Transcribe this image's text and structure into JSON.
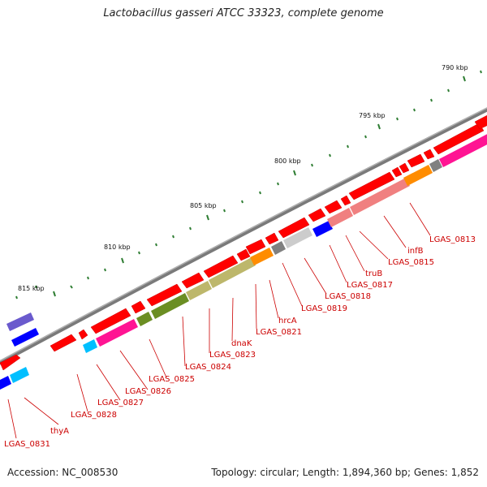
{
  "title": "Lactobacillus gasseri ATCC 33323, complete genome",
  "footer": {
    "accession": "Accession: NC_008530",
    "summary": "Topology: circular; Length: 1,894,360 bp; Genes: 1,852"
  },
  "axis": {
    "ticks": [
      "790 kbp",
      "795 kbp",
      "800 kbp",
      "805 kbp",
      "810 kbp",
      "815 kbp"
    ]
  },
  "genes": [
    {
      "name": "LGAS_0813",
      "color": "#ff1493"
    },
    {
      "name": "infB",
      "color": "#ff8c00"
    },
    {
      "name": "LGAS_0815",
      "color": "#f08080"
    },
    {
      "name": "truB",
      "color": "#f08080"
    },
    {
      "name": "LGAS_0817",
      "color": "#0000ff"
    },
    {
      "name": "LGAS_0818",
      "color": "#cccccc"
    },
    {
      "name": "LGAS_0819",
      "color": "#808080"
    },
    {
      "name": "hrcA",
      "color": "#ff8c00"
    },
    {
      "name": "LGAS_0821",
      "color": "#bdb76b"
    },
    {
      "name": "dnaK",
      "color": "#bdb76b"
    },
    {
      "name": "LGAS_0823",
      "color": "#bdb76b"
    },
    {
      "name": "LGAS_0824",
      "color": "#6b8e23"
    },
    {
      "name": "LGAS_0825",
      "color": "#6b8e23"
    },
    {
      "name": "LGAS_0826",
      "color": "#ff1493"
    },
    {
      "name": "LGAS_0827",
      "color": "#00bfff"
    },
    {
      "name": "LGAS_0828",
      "color": "#ff0000"
    },
    {
      "name": "thyA",
      "color": "#00bfff"
    },
    {
      "name": "LGAS_0831",
      "color": "#0000ff"
    }
  ],
  "colors": {
    "backbone": "#808080",
    "tick": "#2e7d32",
    "label": "#cc0000",
    "cds": "#ff0000"
  }
}
